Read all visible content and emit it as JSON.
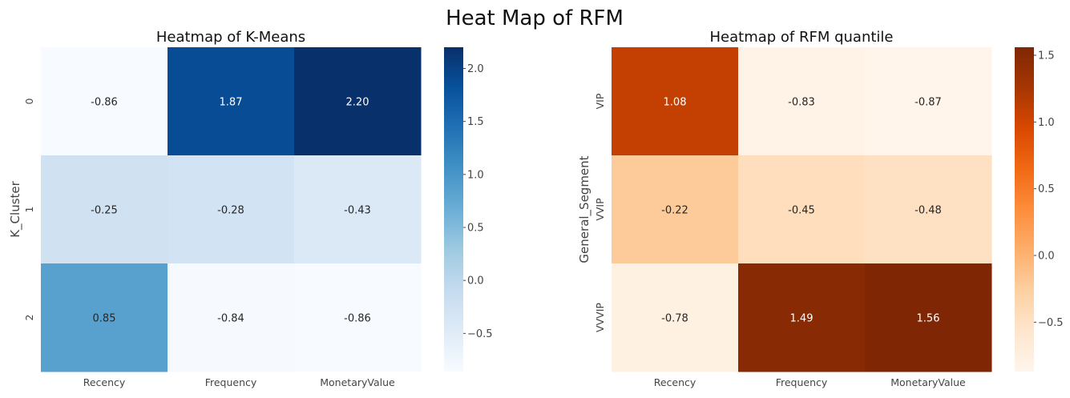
{
  "figure": {
    "suptitle": "Heat Map of RFM"
  },
  "chart_data": [
    {
      "type": "heatmap",
      "title": "Heatmap of K-Means",
      "xlabel": "",
      "ylabel": "K_Cluster",
      "columns": [
        "Recency",
        "Frequency",
        "MonetaryValue"
      ],
      "rows": [
        "0",
        "1",
        "2"
      ],
      "values": [
        [
          -0.86,
          1.87,
          2.2
        ],
        [
          -0.25,
          -0.28,
          -0.43
        ],
        [
          0.85,
          -0.84,
          -0.86
        ]
      ],
      "cell_labels": [
        [
          "-0.86",
          "1.87",
          "2.20"
        ],
        [
          "-0.25",
          "-0.28",
          "-0.43"
        ],
        [
          "0.85",
          "-0.84",
          "-0.86"
        ]
      ],
      "colormap": "Blues",
      "color_range": [
        -0.86,
        2.2
      ],
      "colorbar_ticks": [
        2.0,
        1.5,
        1.0,
        0.5,
        0.0,
        -0.5
      ],
      "colorbar_tick_labels": [
        "2.0",
        "1.5",
        "1.0",
        "0.5",
        "0.0",
        "−0.5"
      ],
      "colorbar": "right"
    },
    {
      "type": "heatmap",
      "title": "Heatmap of RFM quantile",
      "xlabel": "",
      "ylabel": "General_Segment",
      "columns": [
        "Recency",
        "Frequency",
        "MonetaryValue"
      ],
      "rows": [
        "VIP",
        "VVIP",
        "VVVIP"
      ],
      "values": [
        [
          1.08,
          -0.83,
          -0.87
        ],
        [
          -0.22,
          -0.45,
          -0.48
        ],
        [
          -0.78,
          1.49,
          1.56
        ]
      ],
      "cell_labels": [
        [
          "1.08",
          "-0.83",
          "-0.87"
        ],
        [
          "-0.22",
          "-0.45",
          "-0.48"
        ],
        [
          "-0.78",
          "1.49",
          "1.56"
        ]
      ],
      "colormap": "Oranges",
      "color_range": [
        -0.87,
        1.56
      ],
      "colorbar_ticks": [
        1.5,
        1.0,
        0.5,
        0.0,
        -0.5
      ],
      "colorbar_tick_labels": [
        "1.5",
        "1.0",
        "0.5",
        "0.0",
        "−0.5"
      ],
      "colorbar": "right"
    }
  ],
  "colors": {
    "blues_stops": [
      "#f7fbff",
      "#deebf7",
      "#c6dbef",
      "#9ecae1",
      "#6baed6",
      "#4292c6",
      "#2171b5",
      "#08519c",
      "#08306b"
    ],
    "oranges_stops": [
      "#fff5eb",
      "#fee6ce",
      "#fdd0a2",
      "#fdae6b",
      "#fd8d3c",
      "#f16913",
      "#d94801",
      "#a63603",
      "#7f2704"
    ]
  }
}
